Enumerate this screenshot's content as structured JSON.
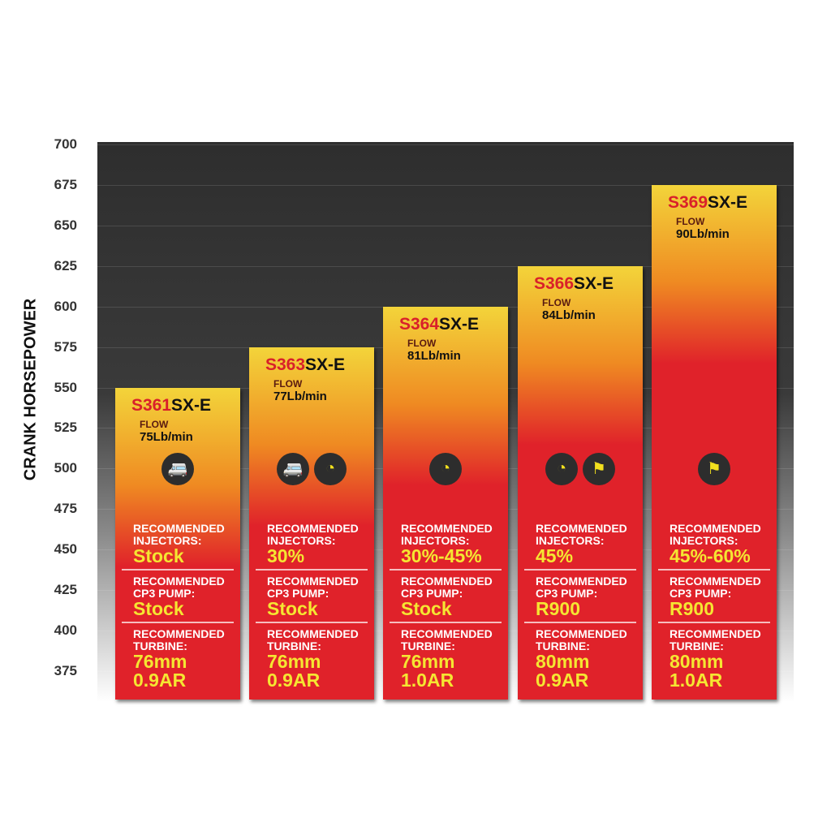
{
  "chart_data": {
    "type": "bar",
    "ylabel": "CRANK HORSEPOWER",
    "ylim": [
      375,
      700
    ],
    "yticks": [
      700,
      675,
      650,
      625,
      600,
      575,
      550,
      525,
      500,
      475,
      450,
      425,
      400,
      375
    ],
    "grid": true,
    "colors": {
      "bar_top": "#f3d43a",
      "bar_bottom": "#e0222a",
      "text_accent": "#f5e632",
      "model_prefix": "#d9202a"
    },
    "categories": [
      "S361SX-E",
      "S363SX-E",
      "S364SX-E",
      "S366SX-E",
      "S369SX-E"
    ],
    "values": [
      550,
      575,
      600,
      625,
      675
    ],
    "bars": [
      {
        "prefix": "S361",
        "suffix": "SX-E",
        "flow_label": "FLOW",
        "flow": "75Lb/min",
        "icons": [
          "trailer-icon"
        ],
        "inj_label": "RECOMMENDED INJECTORS:",
        "inj": "Stock",
        "pump_label": "RECOMMENDED CP3 PUMP:",
        "pump": "Stock",
        "turb_label": "RECOMMENDED TURBINE:",
        "turb1": "76mm",
        "turb2": "0.9AR"
      },
      {
        "prefix": "S363",
        "suffix": "SX-E",
        "flow_label": "FLOW",
        "flow": "77Lb/min",
        "icons": [
          "trailer-icon",
          "gauge-icon"
        ],
        "inj_label": "RECOMMENDED INJECTORS:",
        "inj": "30%",
        "pump_label": "RECOMMENDED CP3 PUMP:",
        "pump": "Stock",
        "turb_label": "RECOMMENDED TURBINE:",
        "turb1": "76mm",
        "turb2": "0.9AR"
      },
      {
        "prefix": "S364",
        "suffix": "SX-E",
        "flow_label": "FLOW",
        "flow": "81Lb/min",
        "icons": [
          "gauge-icon"
        ],
        "inj_label": "RECOMMENDED INJECTORS:",
        "inj": "30%-45%",
        "pump_label": "RECOMMENDED CP3 PUMP:",
        "pump": "Stock",
        "turb_label": "RECOMMENDED TURBINE:",
        "turb1": "76mm",
        "turb2": "1.0AR"
      },
      {
        "prefix": "S366",
        "suffix": "SX-E",
        "flow_label": "FLOW",
        "flow": "84Lb/min",
        "icons": [
          "gauge-icon",
          "race-flag-icon"
        ],
        "inj_label": "RECOMMENDED INJECTORS:",
        "inj": "45%",
        "pump_label": "RECOMMENDED CP3 PUMP:",
        "pump": "R900",
        "turb_label": "RECOMMENDED TURBINE:",
        "turb1": "80mm",
        "turb2": "0.9AR"
      },
      {
        "prefix": "S369",
        "suffix": "SX-E",
        "flow_label": "FLOW",
        "flow": "90Lb/min",
        "icons": [
          "race-flag-icon"
        ],
        "inj_label": "RECOMMENDED INJECTORS:",
        "inj": "45%-60%",
        "pump_label": "RECOMMENDED CP3 PUMP:",
        "pump": "R900",
        "turb_label": "RECOMMENDED TURBINE:",
        "turb1": "80mm",
        "turb2": "1.0AR"
      }
    ]
  }
}
